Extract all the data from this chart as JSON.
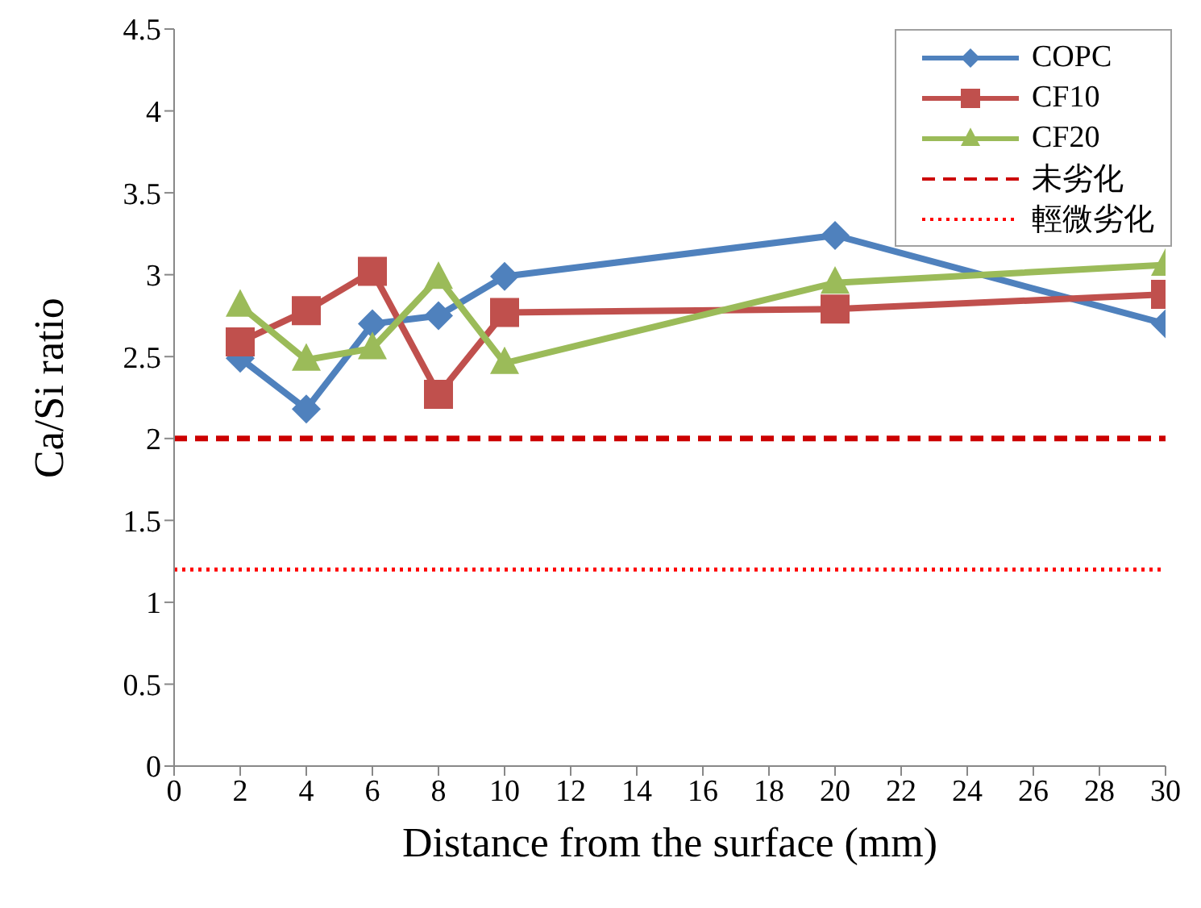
{
  "chart_data": {
    "type": "line",
    "xlabel": "Distance from the surface (mm)",
    "ylabel": "Ca/Si ratio",
    "x": [
      2,
      4,
      6,
      8,
      10,
      20,
      30
    ],
    "series": [
      {
        "name": "COPC",
        "color": "#4f81bd",
        "marker": "diamond",
        "values": [
          2.49,
          2.18,
          2.7,
          2.75,
          2.99,
          3.24,
          2.7
        ]
      },
      {
        "name": "CF10",
        "color": "#c0504d",
        "marker": "square",
        "values": [
          2.59,
          2.78,
          3.02,
          2.27,
          2.77,
          2.79,
          2.88
        ]
      },
      {
        "name": "CF20",
        "color": "#9bbb59",
        "marker": "triangle",
        "values": [
          2.81,
          2.48,
          2.55,
          2.98,
          2.46,
          2.95,
          3.06
        ]
      }
    ],
    "ref_lines": [
      {
        "axis": "y",
        "value": 2,
        "label": "未劣化",
        "color": "#cc0000",
        "line_style": "dashed"
      },
      {
        "axis": "y",
        "value": 1.2,
        "label": "輕微劣化",
        "color": "#ff0000",
        "line_style": "dotted"
      }
    ],
    "xlim": [
      0,
      30
    ],
    "xticks": [
      0,
      2,
      4,
      6,
      8,
      10,
      12,
      14,
      16,
      18,
      20,
      22,
      24,
      26,
      28,
      30
    ],
    "ylim": [
      0,
      4.5
    ],
    "yticks": [
      0,
      0.5,
      1,
      1.5,
      2,
      2.5,
      3,
      3.5,
      4,
      4.5
    ],
    "grid": false,
    "legend": "top right"
  }
}
